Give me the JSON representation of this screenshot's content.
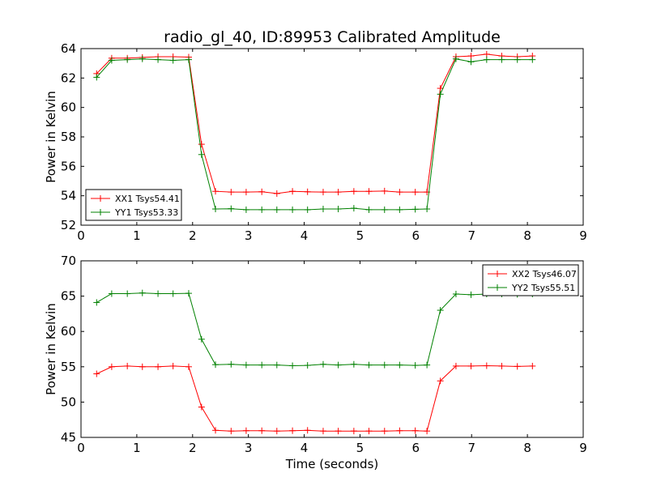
{
  "chart_data": {
    "title": "radio_gl_40, ID:89953 Calibrated Amplitude",
    "xlabel": "Time (seconds)",
    "panels": [
      {
        "type": "line",
        "ylabel": "Power in Kelvin",
        "xlim": [
          0,
          9
        ],
        "ylim": [
          52,
          64
        ],
        "xticks": [
          0,
          1,
          2,
          3,
          4,
          5,
          6,
          7,
          8,
          9
        ],
        "yticks": [
          52,
          54,
          56,
          58,
          60,
          62,
          64
        ],
        "legend": "lower-left",
        "x": [
          0.28,
          0.55,
          0.83,
          1.1,
          1.38,
          1.65,
          1.93,
          2.16,
          2.41,
          2.69,
          2.96,
          3.24,
          3.51,
          3.79,
          4.06,
          4.34,
          4.61,
          4.89,
          5.16,
          5.44,
          5.71,
          5.99,
          6.2,
          6.44,
          6.72,
          6.99,
          7.27,
          7.54,
          7.82,
          8.09
        ],
        "series": [
          {
            "name": "XX1 Tsys54.41",
            "color": "#ff0000",
            "values": [
              62.3,
              63.35,
              63.35,
              63.4,
              63.45,
              63.45,
              63.42,
              57.5,
              54.3,
              54.25,
              54.25,
              54.27,
              54.15,
              54.3,
              54.27,
              54.25,
              54.25,
              54.3,
              54.3,
              54.32,
              54.25,
              54.25,
              54.25,
              61.3,
              63.45,
              63.5,
              63.62,
              63.5,
              63.45,
              63.5
            ]
          },
          {
            "name": "YY1 Tsys53.33",
            "color": "#008000",
            "values": [
              62.05,
              63.2,
              63.25,
              63.3,
              63.25,
              63.2,
              63.25,
              56.8,
              53.1,
              53.12,
              53.05,
              53.05,
              53.05,
              53.05,
              53.05,
              53.1,
              53.1,
              53.15,
              53.05,
              53.05,
              53.05,
              53.08,
              53.1,
              60.9,
              63.3,
              63.1,
              63.25,
              63.25,
              63.25,
              63.25
            ]
          }
        ]
      },
      {
        "type": "line",
        "ylabel": "Power in Kelvin",
        "xlim": [
          0,
          9
        ],
        "ylim": [
          45,
          70
        ],
        "xticks": [
          0,
          1,
          2,
          3,
          4,
          5,
          6,
          7,
          8,
          9
        ],
        "yticks": [
          45,
          50,
          55,
          60,
          65,
          70
        ],
        "legend": "upper-right",
        "x": [
          0.28,
          0.55,
          0.83,
          1.1,
          1.38,
          1.65,
          1.93,
          2.16,
          2.41,
          2.69,
          2.96,
          3.24,
          3.51,
          3.79,
          4.06,
          4.34,
          4.61,
          4.89,
          5.16,
          5.44,
          5.71,
          5.99,
          6.2,
          6.44,
          6.72,
          6.99,
          7.27,
          7.54,
          7.82,
          8.09
        ],
        "series": [
          {
            "name": "XX2 Tsys46.07",
            "color": "#ff0000",
            "values": [
              54.0,
              55.0,
              55.1,
              55.0,
              55.0,
              55.1,
              55.0,
              49.3,
              46.0,
              45.9,
              45.95,
              45.95,
              45.9,
              45.95,
              46.0,
              45.9,
              45.9,
              45.9,
              45.9,
              45.9,
              45.95,
              45.95,
              45.9,
              53.0,
              55.1,
              55.1,
              55.15,
              55.1,
              55.05,
              55.1
            ]
          },
          {
            "name": "YY2 Tsys55.51",
            "color": "#008000",
            "values": [
              64.1,
              65.35,
              65.35,
              65.45,
              65.35,
              65.35,
              65.4,
              58.9,
              55.3,
              55.35,
              55.25,
              55.25,
              55.25,
              55.15,
              55.2,
              55.35,
              55.25,
              55.35,
              55.25,
              55.25,
              55.25,
              55.2,
              55.25,
              63.0,
              65.3,
              65.2,
              65.3,
              65.3,
              65.25,
              65.3
            ]
          }
        ]
      }
    ]
  }
}
